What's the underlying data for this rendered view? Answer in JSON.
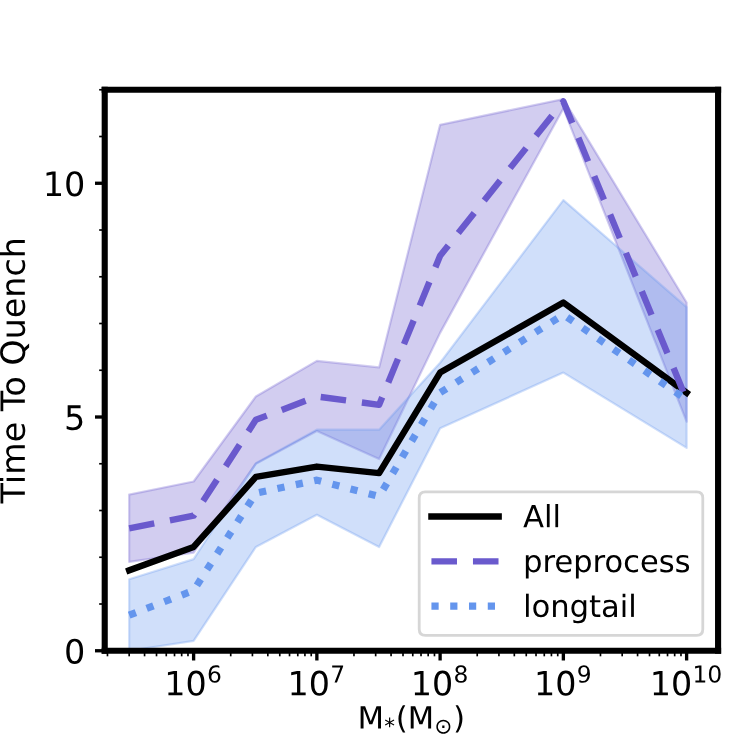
{
  "chart_data": {
    "type": "line",
    "xlabel": "M$_{*}$(M$_{⊙}$)",
    "ylabel": "Time To Quench",
    "x": [
      300000,
      1000000,
      3200000,
      10000000,
      32000000,
      100000000,
      1000000000,
      10000000000
    ],
    "series": [
      {
        "name": "All",
        "color": "#000000",
        "line_style": "solid",
        "values": [
          1.72,
          2.22,
          3.72,
          3.94,
          3.8,
          5.95,
          7.45,
          5.52
        ]
      },
      {
        "name": "preprocess",
        "color": "#6a5acd",
        "line_style": "dashed",
        "values": [
          2.62,
          2.89,
          4.94,
          5.44,
          5.26,
          8.45,
          11.75,
          5.37
        ],
        "lower": [
          1.9,
          2.1,
          4.0,
          4.7,
          4.1,
          6.8,
          11.6,
          4.9
        ],
        "upper": [
          3.34,
          3.62,
          5.44,
          6.2,
          6.06,
          11.25,
          11.8,
          7.45
        ]
      },
      {
        "name": "longtail",
        "color": "#6495ed",
        "line_style": "dotted",
        "values": [
          0.76,
          1.29,
          3.37,
          3.65,
          3.3,
          5.52,
          7.19,
          5.37
        ],
        "lower": [
          0.0,
          0.21,
          2.22,
          2.91,
          2.22,
          4.76,
          5.95,
          4.34
        ],
        "upper": [
          1.53,
          1.96,
          4.01,
          4.73,
          4.73,
          6.16,
          9.64,
          7.35
        ]
      }
    ],
    "log": "x",
    "xlim": [
      190000,
      18000000000
    ],
    "ylim": [
      0,
      12
    ],
    "xticks": [
      {
        "value": 1000000,
        "label": "10$^{6}$"
      },
      {
        "value": 10000000,
        "label": "10$^{7}$"
      },
      {
        "value": 100000000,
        "label": "10$^{8}$"
      },
      {
        "value": 1000000000,
        "label": "10$^{9}$"
      },
      {
        "value": 10000000000,
        "label": "10$^{10}$"
      }
    ],
    "yticks": [
      0,
      5,
      10
    ],
    "legend": "lower right",
    "grid": false,
    "marker": "none"
  }
}
